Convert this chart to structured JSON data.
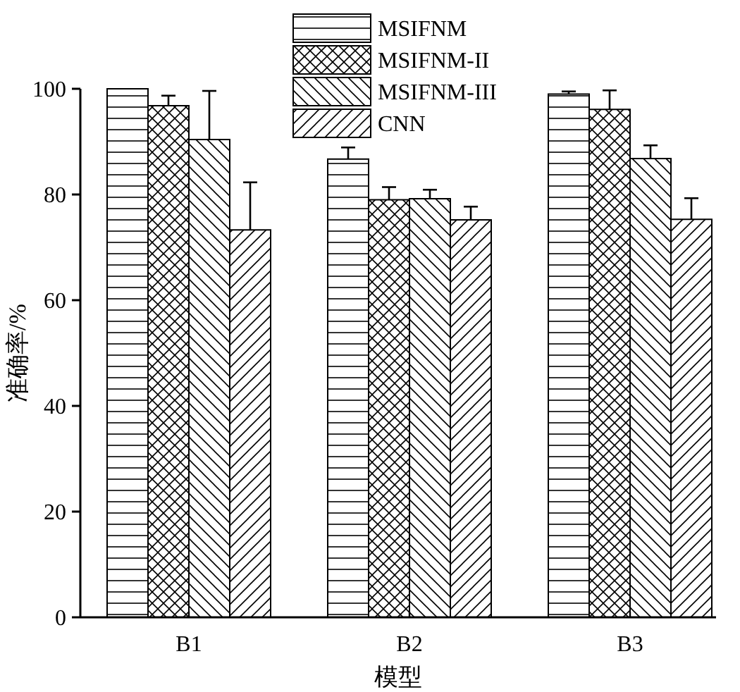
{
  "chart_data": {
    "type": "bar",
    "xlabel": "模型",
    "ylabel": "准确率/%",
    "categories": [
      "B1",
      "B2",
      "B3"
    ],
    "series": [
      {
        "name": "MSIFNM",
        "color": "#000000",
        "values": [
          100,
          86.7,
          99.0
        ],
        "errors": [
          null,
          [
            86.7,
            88.9
          ],
          [
            99.0,
            99.5
          ]
        ]
      },
      {
        "name": "MSIFNM-II",
        "color": "#000000",
        "values": [
          96.8,
          79.0,
          96.1
        ],
        "errors": [
          [
            96.8,
            98.7
          ],
          [
            79.0,
            81.4
          ],
          [
            96.1,
            99.7
          ]
        ]
      },
      {
        "name": "MSIFNM-III",
        "color": "#000000",
        "values": [
          90.4,
          79.2,
          86.8
        ],
        "errors": [
          [
            90.4,
            99.6
          ],
          [
            79.2,
            80.9
          ],
          [
            86.8,
            89.3
          ]
        ]
      },
      {
        "name": "CNN",
        "color": "#000000",
        "values": [
          73.3,
          75.2,
          75.3
        ],
        "errors": [
          [
            73.3,
            82.3
          ],
          [
            75.2,
            77.7
          ],
          [
            75.3,
            79.3
          ]
        ]
      }
    ],
    "ylim": [
      0,
      100
    ],
    "yticks": [
      0,
      20,
      40,
      60,
      80,
      100
    ],
    "grid": false,
    "legend": "top"
  }
}
